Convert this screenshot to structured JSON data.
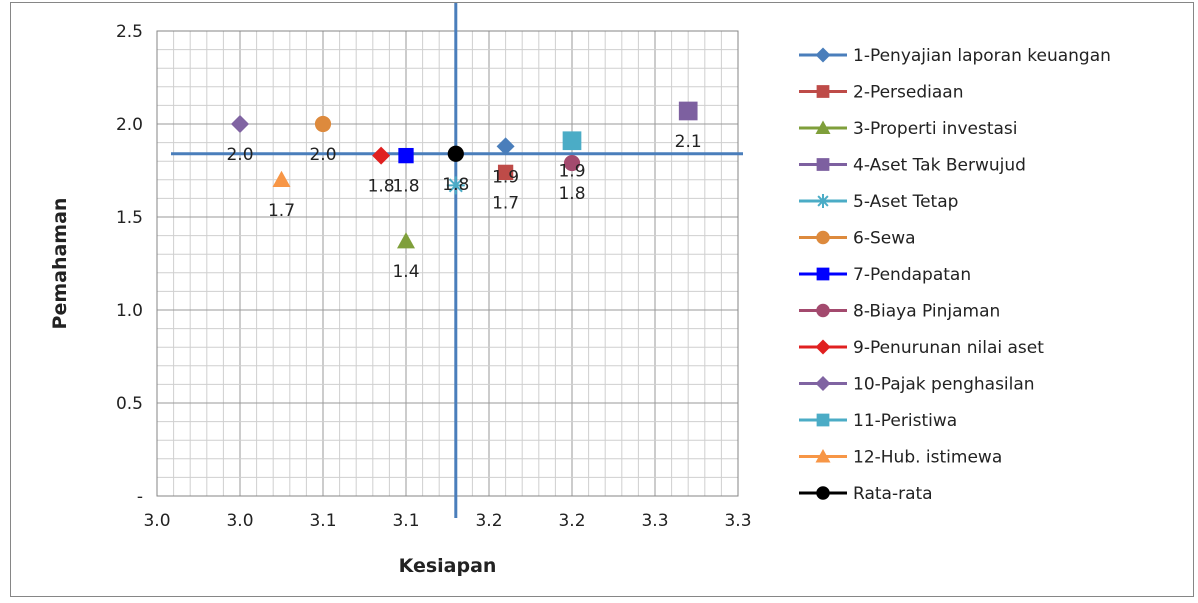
{
  "chart_data": {
    "type": "scatter",
    "title": "",
    "xlabel": "Kesiapan",
    "ylabel": "Pemahaman",
    "xlim": [
      2.95,
      3.3
    ],
    "ylim": [
      0,
      2.5
    ],
    "x_tick_values": [
      2.95,
      3.0,
      3.05,
      3.1,
      3.15,
      3.2,
      3.25,
      3.3
    ],
    "x_tick_labels": [
      "3.0",
      "3.0",
      "3.1",
      "3.1",
      "3.2",
      "3.2",
      "3.3",
      "3.3"
    ],
    "y_tick_values": [
      0,
      0.5,
      1.0,
      1.5,
      2.0,
      2.5
    ],
    "y_tick_labels": [
      "-",
      "0.5",
      "1.0",
      "1.5",
      "2.0",
      "2.5"
    ],
    "grid": true,
    "legend_position": "right",
    "reference_lines": {
      "x": 3.13,
      "y": 1.84,
      "color": "#4a7ebb"
    },
    "series": [
      {
        "name": "1-Penyajian laporan keuangan",
        "x": 3.16,
        "y": 1.88,
        "label": "1.9",
        "marker": "diamond",
        "color": "#4a7ebb"
      },
      {
        "name": "2-Persediaan",
        "x": 3.16,
        "y": 1.74,
        "label": "1.7",
        "marker": "square",
        "color": "#be4b48"
      },
      {
        "name": "3-Properti investasi",
        "x": 3.1,
        "y": 1.37,
        "label": "1.4",
        "marker": "triangle",
        "color": "#7f9f3b"
      },
      {
        "name": "4-Aset Tak Berwujud",
        "x": 3.27,
        "y": 2.07,
        "label": "2.1",
        "marker": "square",
        "color": "#7d60a0"
      },
      {
        "name": "5-Aset Tetap",
        "x": 3.13,
        "y": 1.67,
        "label": "",
        "marker": "star",
        "color": "#4bacc6"
      },
      {
        "name": "6-Sewa",
        "x": 3.05,
        "y": 2.0,
        "label": "2.0",
        "marker": "circle",
        "color": "#dd8a3d"
      },
      {
        "name": "7-Pendapatan",
        "x": 3.1,
        "y": 1.83,
        "label": "1.8",
        "marker": "square",
        "color": "#0000ff"
      },
      {
        "name": "8-Biaya Pinjaman",
        "x": 3.2,
        "y": 1.79,
        "label": "1.8",
        "marker": "circle",
        "color": "#a34a6e"
      },
      {
        "name": "9-Penurunan nilai aset",
        "x": 3.085,
        "y": 1.83,
        "label": "1.8",
        "marker": "diamond",
        "color": "#e02020"
      },
      {
        "name": "10-Pajak penghasilan",
        "x": 3.0,
        "y": 2.0,
        "label": "2.0",
        "marker": "diamond",
        "color": "#8064a2"
      },
      {
        "name": "11-Peristiwa",
        "x": 3.2,
        "y": 1.91,
        "label": "1.9",
        "marker": "square",
        "color": "#4bacc6"
      },
      {
        "name": "12-Hub. istimewa",
        "x": 3.025,
        "y": 1.7,
        "label": "1.7",
        "marker": "triangle",
        "color": "#f79646"
      },
      {
        "name": "Rata-rata",
        "x": 3.13,
        "y": 1.84,
        "label": "1.8",
        "marker": "circle",
        "color": "#000000"
      }
    ]
  }
}
